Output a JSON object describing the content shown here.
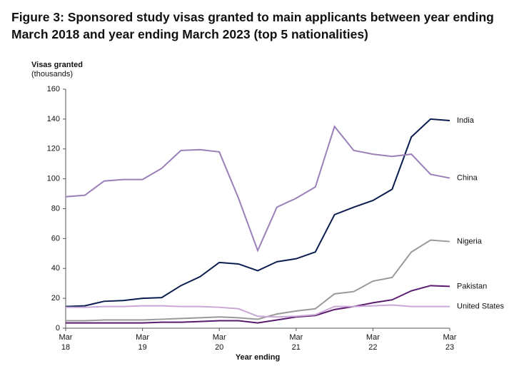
{
  "chart_data": {
    "type": "line",
    "title": "Figure 3: Sponsored study visas granted to main applicants between year ending March 2018 and year ending March 2023 (top 5 nationalities)",
    "ylabel": [
      "Visas granted",
      "(thousands)"
    ],
    "xlabel": "Year ending",
    "categories": [
      "Mar 18",
      null,
      null,
      null,
      "Mar 19",
      null,
      null,
      null,
      "Mar 20",
      null,
      null,
      null,
      "Mar 21",
      null,
      null,
      null,
      "Mar 22",
      null,
      null,
      null,
      "Mar 23"
    ],
    "ylim": [
      0,
      160
    ],
    "yticks": [
      0,
      20,
      40,
      60,
      80,
      100,
      120,
      140,
      160
    ],
    "grid": false,
    "series": [
      {
        "name": "India",
        "color": "#0b1c4f",
        "values": [
          14.5,
          15,
          18,
          18.5,
          20,
          20.5,
          28.5,
          34.5,
          44,
          43,
          38.5,
          44.5,
          46.5,
          51,
          76,
          81,
          85.5,
          93,
          128,
          140,
          139
        ]
      },
      {
        "name": "China",
        "color": "#9b7fb8",
        "values": [
          88,
          89,
          98.5,
          99.5,
          99.5,
          107,
          119,
          119.5,
          118,
          87,
          52,
          81,
          87,
          94.5,
          135,
          119,
          116.5,
          115,
          116.5,
          103,
          100.5
        ]
      },
      {
        "name": "Nigeria",
        "color": "#999999",
        "values": [
          5,
          5,
          5.5,
          5.5,
          5.5,
          6,
          6.5,
          7,
          7.5,
          7,
          6,
          9.5,
          11.5,
          13,
          23,
          24.5,
          31.5,
          34,
          51,
          59,
          58
        ]
      },
      {
        "name": "Pakistan",
        "color": "#5a1a6e",
        "values": [
          3.5,
          3.5,
          3.5,
          3.5,
          3.5,
          4,
          4,
          4.5,
          5,
          5,
          3.5,
          5.5,
          7.5,
          8.5,
          12.5,
          14.5,
          17,
          19,
          25,
          28.5,
          28
        ]
      },
      {
        "name": "United States",
        "color": "#c9a8d8",
        "values": [
          14,
          14,
          14.5,
          14.5,
          15,
          15,
          14.5,
          14.5,
          14,
          13,
          8,
          7.5,
          8,
          9,
          14.5,
          14.5,
          15,
          15.5,
          14.5,
          14.5,
          14.5
        ]
      }
    ]
  }
}
